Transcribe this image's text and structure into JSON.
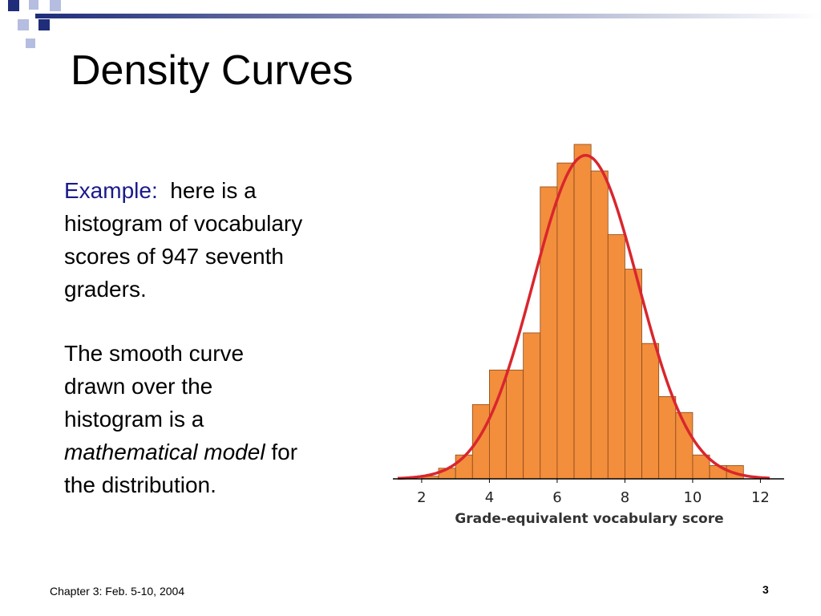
{
  "header": {
    "title": "Density Curves"
  },
  "body": {
    "example_label": "Example:",
    "paragraph1_lines": [
      "here is a",
      "histogram of vocabulary",
      "scores of 947 seventh",
      "graders."
    ],
    "paragraph2_lines": [
      "The smooth curve",
      "drawn over the",
      "histogram is a"
    ],
    "emphasis": "mathematical model",
    "after_emphasis": "for",
    "last_line": "the distribution."
  },
  "footer": {
    "left": "Chapter 3: Feb. 5-10, 2004",
    "page": "3"
  },
  "chart_data": {
    "type": "histogram",
    "bins": [
      2,
      2.5,
      3,
      3.5,
      4,
      4.5,
      5,
      5.5,
      6,
      6.5,
      7,
      7.5,
      8,
      8.5,
      9,
      9.5,
      10,
      10.5,
      11,
      11.5
    ],
    "values": [
      1,
      4,
      9,
      28,
      41,
      41,
      55,
      110,
      119,
      126,
      116,
      92,
      79,
      51,
      31,
      25,
      9,
      5,
      5
    ],
    "color": "#f28e3c",
    "xlim": [
      1.15,
      12.7
    ],
    "xticks": [
      2,
      4,
      6,
      8,
      10,
      12
    ],
    "x_label": "Grade-equivalent vocabulary score",
    "curve": {
      "mean": 6.84,
      "sd": 1.55,
      "color": "#d9262e"
    }
  }
}
